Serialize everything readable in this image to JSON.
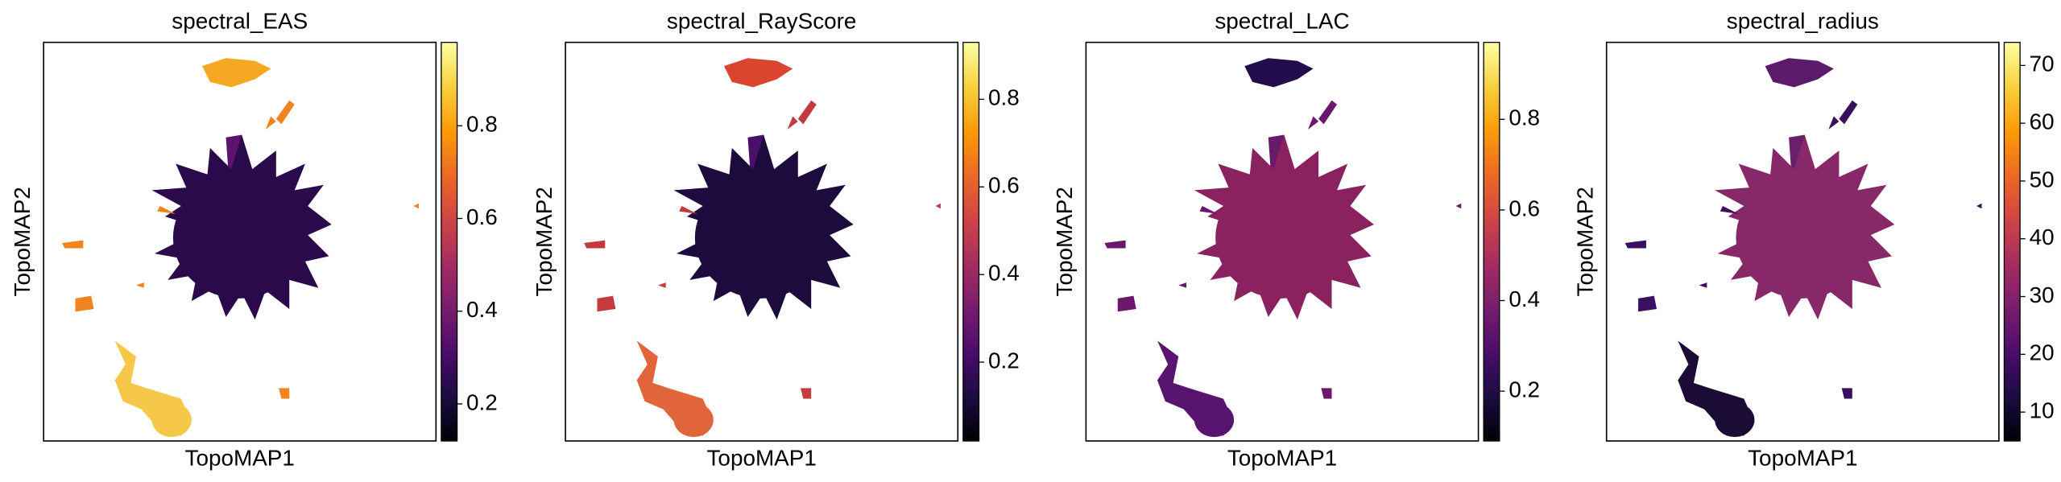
{
  "chart_data": [
    {
      "type": "scatter",
      "title": "spectral_EAS",
      "xlabel": "TopoMAP1",
      "ylabel": "TopoMAP2",
      "colormap": "inferno",
      "clim": [
        0.12,
        0.98
      ],
      "cticks": [
        0.2,
        0.4,
        0.6,
        0.8
      ]
    },
    {
      "type": "scatter",
      "title": "spectral_RayScore",
      "xlabel": "TopoMAP1",
      "ylabel": "TopoMAP2",
      "colormap": "inferno",
      "clim": [
        0.02,
        0.93
      ],
      "cticks": [
        0.2,
        0.4,
        0.6,
        0.8
      ]
    },
    {
      "type": "scatter",
      "title": "spectral_LAC",
      "xlabel": "TopoMAP1",
      "ylabel": "TopoMAP2",
      "colormap": "inferno",
      "clim": [
        0.09,
        0.97
      ],
      "cticks": [
        0.2,
        0.4,
        0.6,
        0.8
      ]
    },
    {
      "type": "scatter",
      "title": "spectral_radius",
      "xlabel": "TopoMAP1",
      "ylabel": "TopoMAP2",
      "colormap": "inferno",
      "clim": [
        5,
        74
      ],
      "cticks": [
        10,
        20,
        30,
        40,
        50,
        60,
        70
      ]
    }
  ]
}
